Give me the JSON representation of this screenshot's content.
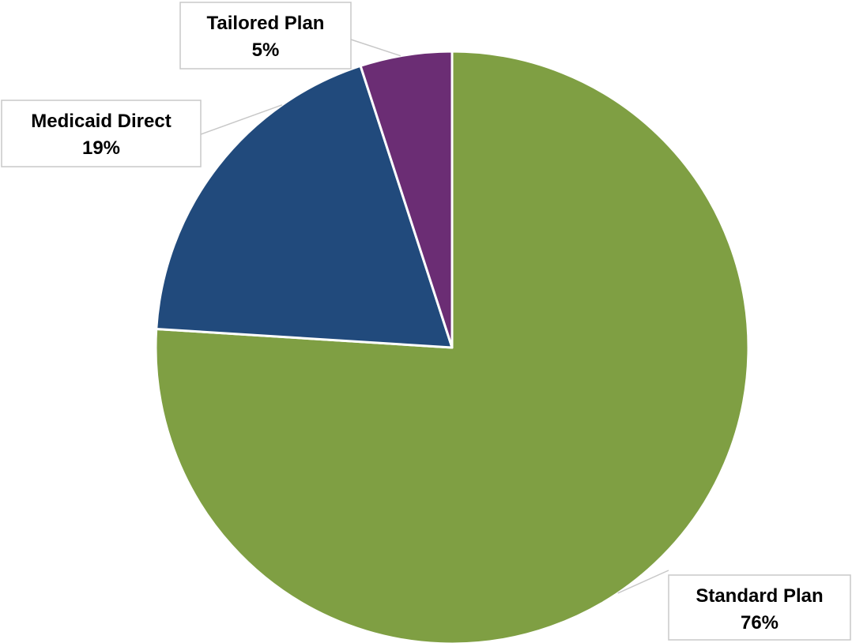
{
  "chart_data": {
    "type": "pie",
    "start_angle": "12 o'clock, clockwise",
    "slices": [
      {
        "label": "Standard Plan",
        "value": 76,
        "value_label": "76%",
        "color": "#7f9f43"
      },
      {
        "label": "Medicaid Direct",
        "value": 19,
        "value_label": "19%",
        "color": "#214a7c"
      },
      {
        "label": "Tailored Plan",
        "value": 5,
        "value_label": "5%",
        "color": "#6b2d74"
      }
    ],
    "slice_border_color": "#ffffff",
    "callout_border_color": "#c8c8c8",
    "legend": "none"
  }
}
